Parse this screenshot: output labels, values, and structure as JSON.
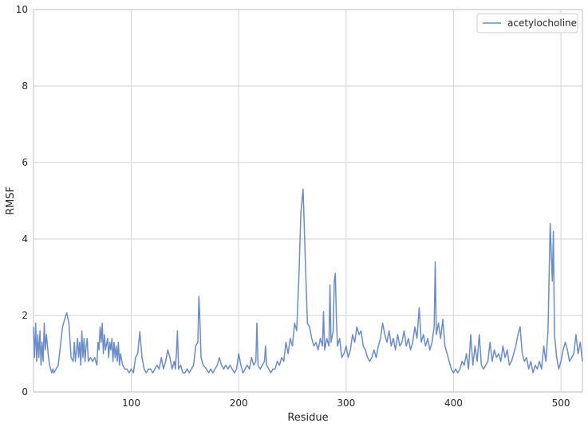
{
  "chart_data": {
    "type": "line",
    "xlabel": "Residue",
    "ylabel": "RMSF",
    "xlim": [
      9,
      520
    ],
    "ylim": [
      0,
      10
    ],
    "xticks": [
      100,
      200,
      300,
      400,
      500
    ],
    "yticks": [
      0,
      2,
      4,
      6,
      8,
      10
    ],
    "grid": true,
    "legend_position": "top-right",
    "series": [
      {
        "name": "acetylocholine",
        "color": "#6b8cc7",
        "points": [
          [
            9,
            1.7
          ],
          [
            10,
            0.9
          ],
          [
            11,
            1.8
          ],
          [
            12,
            0.8
          ],
          [
            13,
            1.5
          ],
          [
            14,
            0.9
          ],
          [
            15,
            1.6
          ],
          [
            16,
            0.7
          ],
          [
            17,
            1.3
          ],
          [
            18,
            0.8
          ],
          [
            19,
            1.8
          ],
          [
            20,
            1.1
          ],
          [
            21,
            1.5
          ],
          [
            22,
            1.2
          ],
          [
            23,
            0.9
          ],
          [
            24,
            0.7
          ],
          [
            25,
            0.6
          ],
          [
            26,
            0.5
          ],
          [
            27,
            0.6
          ],
          [
            28,
            0.5
          ],
          [
            30,
            0.6
          ],
          [
            32,
            0.7
          ],
          [
            34,
            1.2
          ],
          [
            36,
            1.7
          ],
          [
            38,
            1.9
          ],
          [
            40,
            2.07
          ],
          [
            42,
            1.8
          ],
          [
            44,
            0.9
          ],
          [
            46,
            0.8
          ],
          [
            47,
            1.3
          ],
          [
            48,
            0.8
          ],
          [
            50,
            1.4
          ],
          [
            51,
            0.9
          ],
          [
            52,
            1.3
          ],
          [
            53,
            0.7
          ],
          [
            54,
            1.6
          ],
          [
            55,
            0.9
          ],
          [
            56,
            1.4
          ],
          [
            57,
            0.8
          ],
          [
            58,
            1.2
          ],
          [
            59,
            1.4
          ],
          [
            60,
            0.8
          ],
          [
            62,
            0.9
          ],
          [
            64,
            0.8
          ],
          [
            66,
            0.9
          ],
          [
            68,
            0.7
          ],
          [
            69,
            1.3
          ],
          [
            70,
            1.1
          ],
          [
            71,
            1.7
          ],
          [
            72,
            1.3
          ],
          [
            73,
            1.8
          ],
          [
            74,
            1.0
          ],
          [
            75,
            1.5
          ],
          [
            76,
            1.1
          ],
          [
            78,
            1.4
          ],
          [
            79,
            0.9
          ],
          [
            80,
            1.3
          ],
          [
            81,
            1.1
          ],
          [
            82,
            1.4
          ],
          [
            83,
            0.8
          ],
          [
            84,
            1.3
          ],
          [
            85,
            0.9
          ],
          [
            86,
            1.2
          ],
          [
            87,
            0.8
          ],
          [
            88,
            1.3
          ],
          [
            89,
            0.7
          ],
          [
            90,
            1.0
          ],
          [
            92,
            0.7
          ],
          [
            94,
            0.6
          ],
          [
            96,
            0.6
          ],
          [
            98,
            0.5
          ],
          [
            100,
            0.6
          ],
          [
            102,
            0.5
          ],
          [
            104,
            0.9
          ],
          [
            106,
            1.0
          ],
          [
            108,
            1.58
          ],
          [
            110,
            0.9
          ],
          [
            112,
            0.6
          ],
          [
            114,
            0.5
          ],
          [
            116,
            0.6
          ],
          [
            118,
            0.6
          ],
          [
            120,
            0.5
          ],
          [
            122,
            0.6
          ],
          [
            124,
            0.7
          ],
          [
            126,
            0.6
          ],
          [
            128,
            0.9
          ],
          [
            130,
            0.6
          ],
          [
            132,
            0.8
          ],
          [
            134,
            1.1
          ],
          [
            136,
            0.9
          ],
          [
            138,
            0.6
          ],
          [
            140,
            0.8
          ],
          [
            141,
            0.6
          ],
          [
            142,
            1.0
          ],
          [
            143,
            1.6
          ],
          [
            144,
            0.6
          ],
          [
            146,
            0.7
          ],
          [
            148,
            0.5
          ],
          [
            150,
            0.5
          ],
          [
            152,
            0.6
          ],
          [
            154,
            0.5
          ],
          [
            156,
            0.6
          ],
          [
            158,
            0.7
          ],
          [
            160,
            1.2
          ],
          [
            162,
            1.3
          ],
          [
            163,
            2.5
          ],
          [
            164,
            1.8
          ],
          [
            165,
            0.9
          ],
          [
            167,
            0.7
          ],
          [
            170,
            0.6
          ],
          [
            172,
            0.5
          ],
          [
            174,
            0.6
          ],
          [
            176,
            0.5
          ],
          [
            178,
            0.6
          ],
          [
            180,
            0.7
          ],
          [
            182,
            0.9
          ],
          [
            184,
            0.7
          ],
          [
            186,
            0.6
          ],
          [
            188,
            0.7
          ],
          [
            190,
            0.6
          ],
          [
            192,
            0.7
          ],
          [
            194,
            0.6
          ],
          [
            196,
            0.5
          ],
          [
            198,
            0.6
          ],
          [
            200,
            1.0
          ],
          [
            202,
            0.7
          ],
          [
            204,
            0.5
          ],
          [
            206,
            0.6
          ],
          [
            208,
            0.7
          ],
          [
            210,
            0.6
          ],
          [
            212,
            0.9
          ],
          [
            214,
            0.7
          ],
          [
            216,
            0.8
          ],
          [
            217,
            1.8
          ],
          [
            218,
            0.7
          ],
          [
            220,
            0.6
          ],
          [
            222,
            0.7
          ],
          [
            224,
            0.8
          ],
          [
            225,
            1.2
          ],
          [
            226,
            0.7
          ],
          [
            228,
            0.6
          ],
          [
            230,
            0.5
          ],
          [
            232,
            0.6
          ],
          [
            234,
            0.6
          ],
          [
            236,
            0.8
          ],
          [
            238,
            0.7
          ],
          [
            240,
            0.9
          ],
          [
            242,
            0.8
          ],
          [
            244,
            1.3
          ],
          [
            246,
            1.0
          ],
          [
            248,
            1.4
          ],
          [
            250,
            1.2
          ],
          [
            252,
            1.8
          ],
          [
            254,
            1.6
          ],
          [
            256,
            3.0
          ],
          [
            258,
            4.7
          ],
          [
            260,
            5.3
          ],
          [
            262,
            3.5
          ],
          [
            264,
            1.8
          ],
          [
            266,
            1.7
          ],
          [
            268,
            1.4
          ],
          [
            270,
            1.2
          ],
          [
            272,
            1.3
          ],
          [
            274,
            1.1
          ],
          [
            276,
            1.4
          ],
          [
            278,
            1.2
          ],
          [
            279,
            2.1
          ],
          [
            280,
            1.1
          ],
          [
            282,
            1.4
          ],
          [
            284,
            1.2
          ],
          [
            285,
            2.8
          ],
          [
            286,
            1.3
          ],
          [
            288,
            1.6
          ],
          [
            289,
            2.9
          ],
          [
            290,
            3.1
          ],
          [
            291,
            1.9
          ],
          [
            292,
            1.2
          ],
          [
            294,
            1.4
          ],
          [
            296,
            0.9
          ],
          [
            298,
            1.0
          ],
          [
            300,
            1.2
          ],
          [
            302,
            0.9
          ],
          [
            304,
            1.1
          ],
          [
            306,
            1.5
          ],
          [
            308,
            1.3
          ],
          [
            310,
            1.7
          ],
          [
            312,
            1.5
          ],
          [
            314,
            1.6
          ],
          [
            316,
            1.2
          ],
          [
            318,
            1.1
          ],
          [
            320,
            0.9
          ],
          [
            322,
            0.8
          ],
          [
            324,
            0.9
          ],
          [
            326,
            1.1
          ],
          [
            328,
            0.9
          ],
          [
            330,
            1.2
          ],
          [
            332,
            1.4
          ],
          [
            334,
            1.8
          ],
          [
            336,
            1.5
          ],
          [
            338,
            1.3
          ],
          [
            340,
            1.6
          ],
          [
            342,
            1.2
          ],
          [
            344,
            1.4
          ],
          [
            346,
            1.1
          ],
          [
            348,
            1.5
          ],
          [
            350,
            1.2
          ],
          [
            352,
            1.3
          ],
          [
            354,
            1.6
          ],
          [
            356,
            1.2
          ],
          [
            358,
            1.4
          ],
          [
            360,
            1.1
          ],
          [
            362,
            1.3
          ],
          [
            364,
            1.7
          ],
          [
            366,
            1.4
          ],
          [
            368,
            2.2
          ],
          [
            370,
            1.3
          ],
          [
            372,
            1.5
          ],
          [
            374,
            1.2
          ],
          [
            376,
            1.4
          ],
          [
            378,
            1.1
          ],
          [
            380,
            1.3
          ],
          [
            382,
            1.7
          ],
          [
            383,
            3.4
          ],
          [
            384,
            1.5
          ],
          [
            386,
            1.8
          ],
          [
            388,
            1.4
          ],
          [
            390,
            1.9
          ],
          [
            392,
            1.2
          ],
          [
            394,
            1.0
          ],
          [
            396,
            0.8
          ],
          [
            398,
            0.6
          ],
          [
            400,
            0.5
          ],
          [
            402,
            0.6
          ],
          [
            404,
            0.5
          ],
          [
            406,
            0.6
          ],
          [
            408,
            0.8
          ],
          [
            410,
            0.7
          ],
          [
            412,
            1.0
          ],
          [
            414,
            0.6
          ],
          [
            416,
            1.5
          ],
          [
            418,
            0.7
          ],
          [
            420,
            1.2
          ],
          [
            422,
            0.8
          ],
          [
            424,
            1.5
          ],
          [
            426,
            0.7
          ],
          [
            428,
            0.6
          ],
          [
            430,
            0.7
          ],
          [
            432,
            0.8
          ],
          [
            434,
            1.3
          ],
          [
            436,
            0.8
          ],
          [
            438,
            1.1
          ],
          [
            440,
            0.9
          ],
          [
            442,
            1.0
          ],
          [
            444,
            0.8
          ],
          [
            446,
            1.2
          ],
          [
            448,
            0.9
          ],
          [
            450,
            1.1
          ],
          [
            452,
            0.7
          ],
          [
            454,
            0.8
          ],
          [
            456,
            1.0
          ],
          [
            458,
            1.2
          ],
          [
            460,
            1.5
          ],
          [
            462,
            1.7
          ],
          [
            464,
            1.0
          ],
          [
            466,
            0.8
          ],
          [
            468,
            0.9
          ],
          [
            470,
            0.6
          ],
          [
            472,
            0.8
          ],
          [
            474,
            0.5
          ],
          [
            476,
            0.7
          ],
          [
            478,
            0.6
          ],
          [
            480,
            0.8
          ],
          [
            482,
            0.6
          ],
          [
            484,
            1.2
          ],
          [
            486,
            0.8
          ],
          [
            488,
            1.6
          ],
          [
            490,
            4.4
          ],
          [
            492,
            2.9
          ],
          [
            493,
            4.2
          ],
          [
            494,
            1.5
          ],
          [
            496,
            0.9
          ],
          [
            498,
            0.6
          ],
          [
            500,
            0.8
          ],
          [
            502,
            1.1
          ],
          [
            504,
            1.3
          ],
          [
            506,
            1.1
          ],
          [
            508,
            0.8
          ],
          [
            510,
            0.9
          ],
          [
            512,
            1.0
          ],
          [
            514,
            1.5
          ],
          [
            516,
            1.0
          ],
          [
            518,
            1.3
          ],
          [
            520,
            0.8
          ]
        ]
      }
    ]
  }
}
